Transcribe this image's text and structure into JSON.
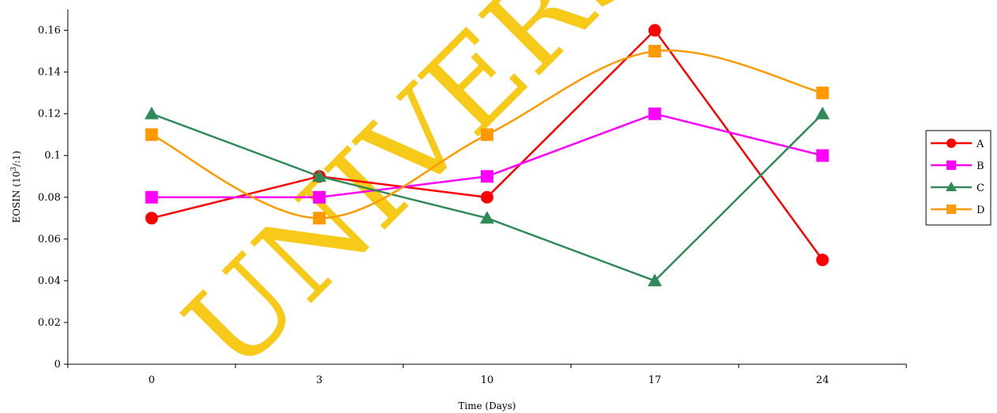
{
  "watermark": "UNIVERSITY OF IBADAN",
  "chart_data": {
    "type": "line",
    "categories": [
      "0",
      "3",
      "10",
      "17",
      "24"
    ],
    "xlabel": "Time (Days)",
    "ylabel_main": "EOSIN (10",
    "ylabel_sup": "3",
    "ylabel_tail": "/:1)",
    "ylim": [
      0,
      0.17
    ],
    "yticks": [
      "0",
      "0.02",
      "0.04",
      "0.06",
      "0.08",
      "0.1",
      "0.12",
      "0.14",
      "0.16"
    ],
    "grid": false,
    "legend_position": "right",
    "series": [
      {
        "name": "A",
        "color": "#ff0000",
        "marker": "circle",
        "smooth": false,
        "values": [
          0.07,
          0.09,
          0.08,
          0.16,
          0.05
        ]
      },
      {
        "name": "B",
        "color": "#ff00ff",
        "marker": "square",
        "smooth": false,
        "values": [
          0.08,
          0.08,
          0.09,
          0.12,
          0.1
        ]
      },
      {
        "name": "C",
        "color": "#2e8b57",
        "marker": "triangle",
        "smooth": false,
        "values": [
          0.12,
          0.09,
          0.07,
          0.04,
          0.12
        ]
      },
      {
        "name": "D",
        "color": "#ff9900",
        "marker": "square",
        "smooth": true,
        "values": [
          0.11,
          0.07,
          0.11,
          0.15,
          0.13
        ]
      }
    ]
  }
}
